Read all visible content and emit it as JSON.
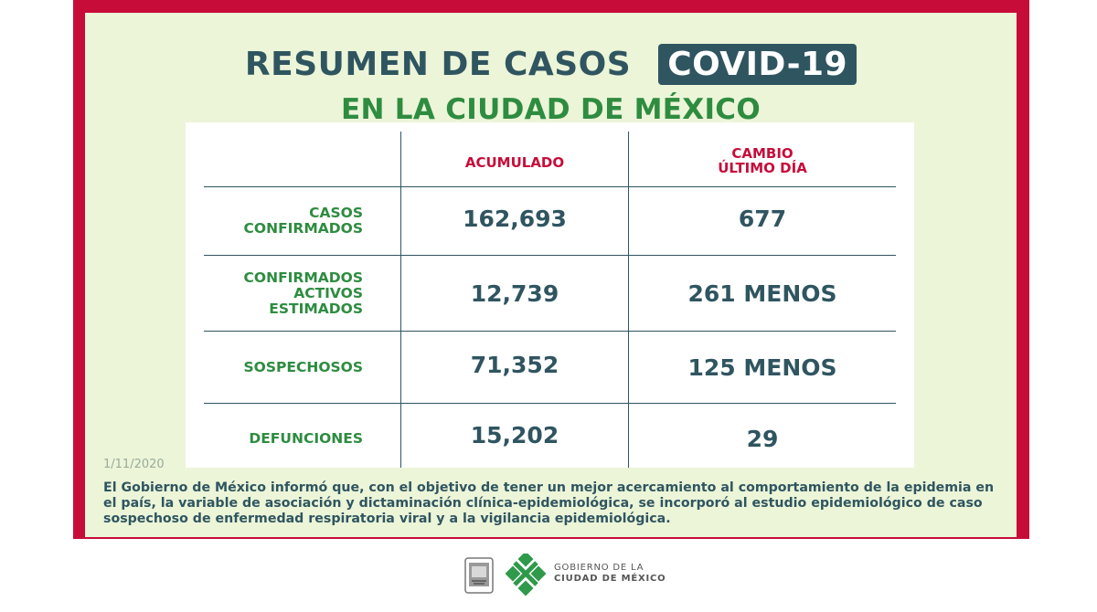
{
  "header": {
    "title": "RESUMEN DE CASOS",
    "badge": "COVID-19",
    "subtitle": "EN LA CIUDAD DE MÉXICO"
  },
  "table": {
    "columns": [
      "ACUMULADO",
      "CAMBIO",
      "ÚLTIMO DÍA"
    ],
    "rows": [
      {
        "label": [
          "CASOS",
          "CONFIRMADOS"
        ],
        "acumulado": "162,693",
        "cambio": "677"
      },
      {
        "label": [
          "CONFIRMADOS",
          "ACTIVOS",
          "ESTIMADOS"
        ],
        "acumulado": "12,739",
        "cambio": "261 MENOS"
      },
      {
        "label": [
          "SOSPECHOSOS"
        ],
        "acumulado": "71,352",
        "cambio": "125 MENOS"
      },
      {
        "label": [
          "DEFUNCIONES"
        ],
        "acumulado": "15,202",
        "cambio": "29"
      }
    ]
  },
  "date": "1/11/2020",
  "note": "El Gobierno de México informó que, con el objetivo de tener un mejor acercamiento al comportamiento de la epidemia en el país, la variable de asociación y dictaminación clínica-epidemiológica, se incorporó al estudio epidemiológico de caso sospechoso de enfermedad respiratoria viral y a la vigilancia epidemiológica.",
  "footer": {
    "gov_line1": "GOBIERNO DE LA",
    "gov_line2": "CIUDAD DE MÉXICO"
  },
  "colors": {
    "frame": "#c70c3a",
    "panel": "#ecf5d8",
    "dark_teal": "#2f5560",
    "green": "#2e8c40"
  }
}
